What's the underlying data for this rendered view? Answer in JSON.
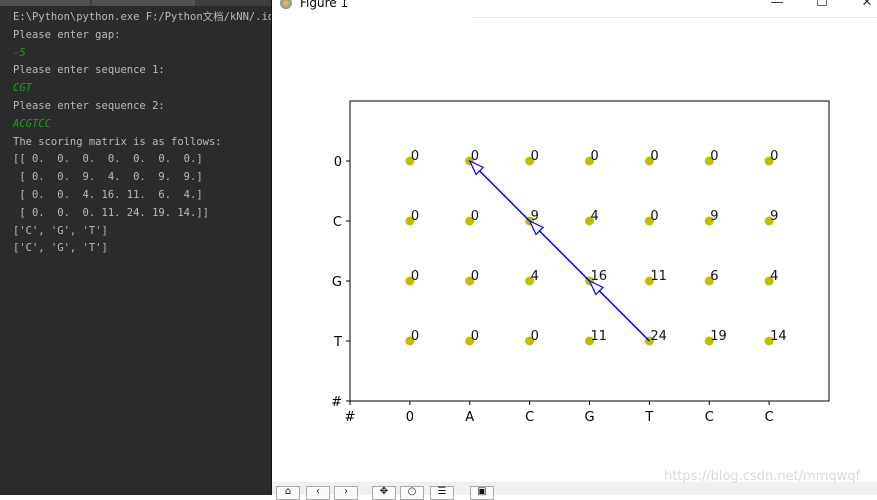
{
  "console": {
    "lines": [
      {
        "text": "E:\\Python\\python.exe F:/Python文档/kNN/.id",
        "input": false
      },
      {
        "text": "Please enter gap:",
        "input": false
      },
      {
        "text": "-5",
        "input": true
      },
      {
        "text": "Please enter sequence 1:",
        "input": false
      },
      {
        "text": "CGT",
        "input": true
      },
      {
        "text": "Please enter sequence 2:",
        "input": false
      },
      {
        "text": "ACGTCC",
        "input": true
      },
      {
        "text": "The scoring matrix is as follows:",
        "input": false
      },
      {
        "text": "[[ 0.  0.  0.  0.  0.  0.  0.]",
        "input": false
      },
      {
        "text": " [ 0.  0.  9.  4.  0.  9.  9.]",
        "input": false
      },
      {
        "text": " [ 0.  0.  4. 16. 11.  6.  4.]",
        "input": false
      },
      {
        "text": " [ 0.  0.  0. 11. 24. 19. 14.]]",
        "input": false
      },
      {
        "text": "['C', 'G', 'T']",
        "input": false
      },
      {
        "text": "['C', 'G', 'T']",
        "input": false
      }
    ],
    "colors": {
      "background": "#2b2b2b",
      "text": "#bbbbbb",
      "input": "#1f9b1f"
    }
  },
  "window": {
    "title": "Figure 1",
    "minimize": "—",
    "maximize": "☐",
    "close": "✕",
    "toolbar": [
      "home-icon",
      "back-icon",
      "forward-icon",
      "pan-icon",
      "zoom-icon",
      "configure-icon",
      "save-icon"
    ],
    "toolbar_glyphs": [
      "⌂",
      "‹",
      "›",
      "✥",
      "○",
      "☰",
      "▣"
    ],
    "watermark": "https://blog.csdn.net/mmqwqf"
  },
  "chart_data": {
    "type": "scatter",
    "x_tick_labels": [
      "#",
      "0",
      "A",
      "C",
      "G",
      "T",
      "C",
      "C"
    ],
    "y_tick_labels": [
      "0",
      "C",
      "G",
      "T",
      "#"
    ],
    "matrix": [
      [
        0,
        0,
        0,
        0,
        0,
        0,
        0
      ],
      [
        0,
        0,
        9,
        4,
        0,
        9,
        9
      ],
      [
        0,
        0,
        4,
        16,
        11,
        6,
        4
      ],
      [
        0,
        0,
        0,
        11,
        24,
        19,
        14
      ]
    ],
    "traceback_path": [
      [
        3,
        4
      ],
      [
        2,
        3
      ],
      [
        1,
        2
      ],
      [
        0,
        1
      ]
    ],
    "point_color": "#bfbf00",
    "arrow_color": "#0000ff",
    "grid": false
  }
}
